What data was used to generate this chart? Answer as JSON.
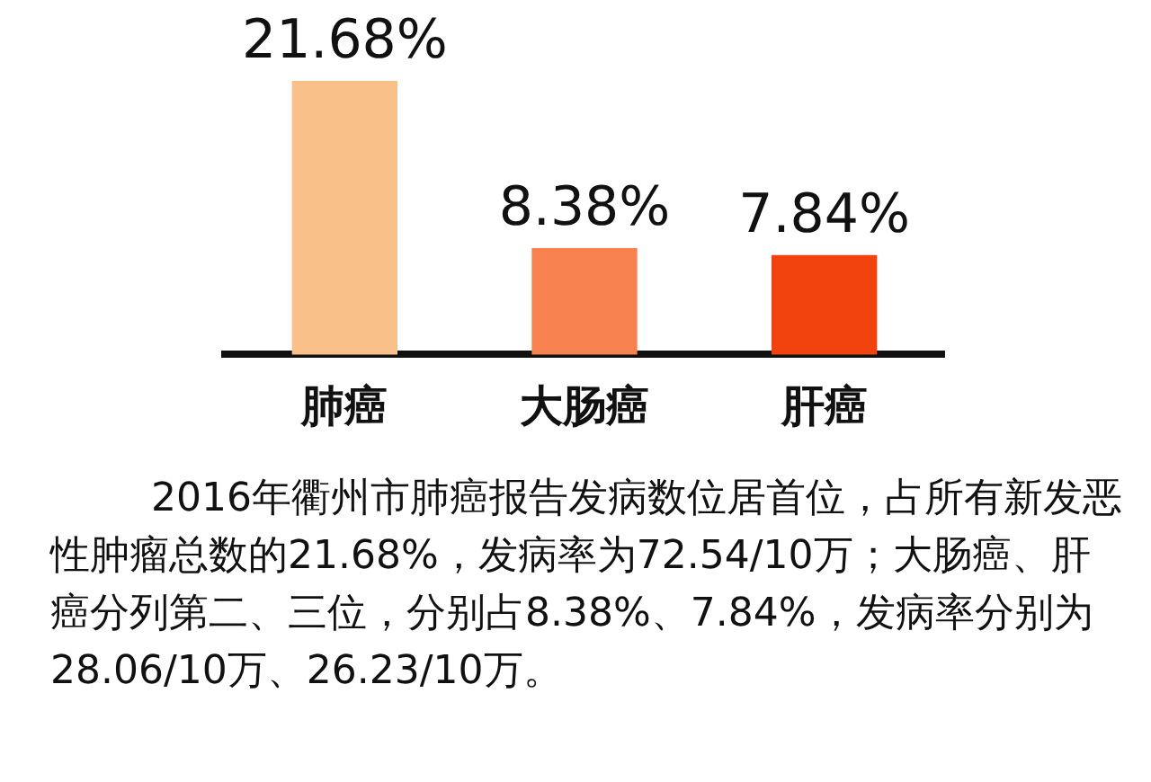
{
  "chart_data": {
    "type": "bar",
    "categories": [
      "肺癌",
      "大肠癌",
      "肝癌"
    ],
    "values": [
      21.68,
      8.38,
      7.84
    ],
    "colors": [
      "#f9c08a",
      "#f7814f",
      "#f2430f"
    ],
    "value_labels": [
      "21.68%",
      "8.38%",
      "7.84%"
    ],
    "annotations": [
      "2016年衢州市肺癌报告发病数位居首位，占所有新发恶性肿瘤总数的21.68%，发病率为72.54/10万；大肠癌、肝癌分列第二、三位，分别占8.38%、7.84%，发病率分别为28.06/10万、26.23/10万。"
    ]
  }
}
